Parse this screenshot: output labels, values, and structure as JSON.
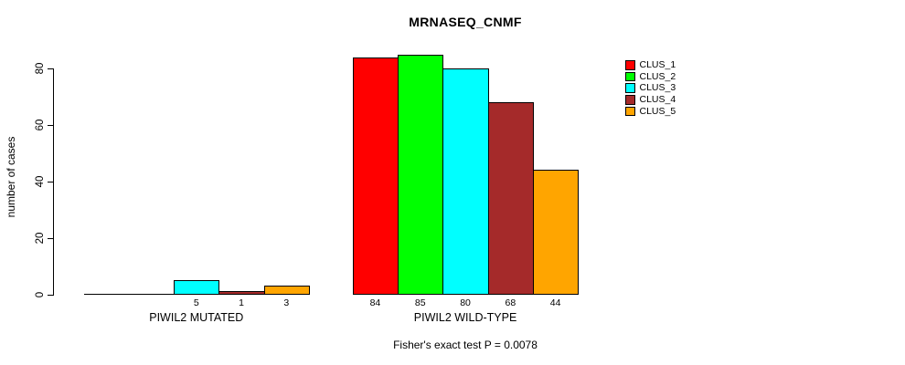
{
  "chart_data": {
    "type": "bar",
    "title": "MRNASEQ_CNMF",
    "xlabel": "",
    "ylabel": "number of cases",
    "categories": [
      "PIWIL2 MUTATED",
      "PIWIL2 WILD-TYPE"
    ],
    "series": [
      {
        "name": "CLUS_1",
        "color": "#ff0000",
        "values": [
          0,
          84
        ]
      },
      {
        "name": "CLUS_2",
        "color": "#00ff00",
        "values": [
          0,
          85
        ]
      },
      {
        "name": "CLUS_3",
        "color": "#00ffff",
        "values": [
          5,
          80
        ]
      },
      {
        "name": "CLUS_4",
        "color": "#a52a2a",
        "values": [
          1,
          68
        ]
      },
      {
        "name": "CLUS_5",
        "color": "#ffa500",
        "values": [
          3,
          44
        ]
      }
    ],
    "bar_value_labels": [
      [
        "",
        "",
        "5",
        "1",
        "3"
      ],
      [
        "84",
        "85",
        "80",
        "68",
        "44"
      ]
    ],
    "yticks": [
      0,
      20,
      40,
      60,
      80
    ],
    "ylim": [
      0,
      85
    ],
    "grid": false,
    "legend_position": "right",
    "legend_entries": [
      "CLUS_1",
      "CLUS_2",
      "CLUS_3",
      "CLUS_4",
      "CLUS_5"
    ],
    "annotation": "Fisher's exact test P = 0.0078",
    "colors": {
      "bar_border": "#000000",
      "text": "#000000",
      "background": "#ffffff"
    }
  }
}
